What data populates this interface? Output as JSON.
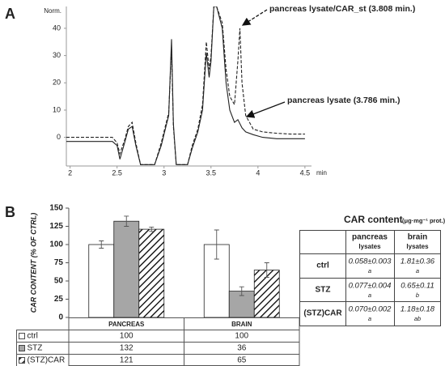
{
  "chart_data": [
    {
      "type": "line",
      "panel": "A",
      "ylabel": "Norm.",
      "xlabel": "min",
      "annotations": [
        "pancreas lysate/CAR_st (3.808 min.)",
        "pancreas lysate (3.786 min.)"
      ],
      "x": [
        1.96,
        2.3,
        2.45,
        2.5,
        2.53,
        2.58,
        2.62,
        2.66,
        2.7,
        2.75,
        2.82,
        2.9,
        2.97,
        3.02,
        3.05,
        3.08,
        3.1,
        3.13,
        3.2,
        3.25,
        3.3,
        3.36,
        3.41,
        3.45,
        3.48,
        3.5,
        3.53,
        3.56,
        3.62,
        3.66,
        3.7,
        3.75,
        3.786,
        3.808,
        3.83,
        3.87,
        3.95,
        4.05,
        4.2,
        4.35,
        4.5
      ],
      "series": [
        {
          "color": "#222222",
          "dash": false,
          "values": [
            -1.5,
            -1.5,
            -1.5,
            -3,
            -8,
            -2,
            3,
            4,
            -3,
            -10,
            -10,
            -10,
            -3,
            4,
            8,
            36,
            5,
            -10,
            -10,
            -10,
            -4,
            2,
            10,
            31,
            22,
            28,
            48,
            48,
            40,
            20,
            10,
            5.5,
            6.5,
            5,
            3.5,
            2,
            1,
            0,
            -0.5,
            -0.5,
            -0.5
          ]
        },
        {
          "color": "#222222",
          "dash": true,
          "values": [
            0,
            0,
            0,
            -2,
            -6,
            -1,
            4,
            5.5,
            -2,
            -10,
            -10,
            -10,
            -2,
            5,
            9,
            33,
            4,
            -10,
            -10,
            -10,
            -3,
            3,
            12,
            35,
            25,
            30,
            48,
            48,
            42,
            25,
            15,
            12,
            28,
            40,
            20,
            8,
            3,
            2,
            1.5,
            1.2,
            1.2
          ]
        }
      ],
      "xlim": [
        1.96,
        4.57
      ],
      "xticks": [
        2,
        2.5,
        3,
        3.5,
        4,
        4.5
      ],
      "ylim": [
        -10.5,
        48
      ],
      "yticks": [
        0,
        10,
        20,
        30,
        40
      ]
    },
    {
      "type": "bar",
      "panel": "B",
      "ylabel": "CAR CONTENT (% OF CTRL)",
      "categories": [
        "PANCREAS",
        "BRAIN"
      ],
      "series": [
        {
          "name": "ctrl",
          "color": "#ffffff",
          "hatch": false,
          "values": [
            100,
            100
          ],
          "errors": [
            5,
            20
          ]
        },
        {
          "name": "STZ",
          "color": "#a6a6a6",
          "hatch": false,
          "values": [
            132,
            36
          ],
          "errors": [
            7,
            6
          ]
        },
        {
          "name": "(STZ)CAR",
          "color": "#000000",
          "hatch": true,
          "values": [
            121,
            65
          ],
          "errors": [
            3,
            10
          ]
        }
      ],
      "ylim": [
        0,
        150
      ],
      "yticks": [
        0,
        25,
        50,
        75,
        100,
        125,
        150
      ]
    }
  ],
  "table": {
    "title": "CAR content",
    "unit": "(μg·mg⁻¹ prot.)",
    "columns": [
      {
        "name": "pancreas",
        "sub": "lysates"
      },
      {
        "name": "brain",
        "sub": "lysates"
      }
    ],
    "rows": [
      {
        "label": "ctrl",
        "cells": [
          {
            "value": "0.058±0.003",
            "letter": "a"
          },
          {
            "value": "1.81±0.36",
            "letter": "a"
          }
        ]
      },
      {
        "label": "STZ",
        "cells": [
          {
            "value": "0.077±0.004",
            "letter": "a"
          },
          {
            "value": "0.65±0.11",
            "letter": "b"
          }
        ]
      },
      {
        "label": "(STZ)CAR",
        "cells": [
          {
            "value": "0.070±0.002",
            "letter": "a"
          },
          {
            "value": "1.18±0.18",
            "letter": "ab"
          }
        ]
      }
    ]
  }
}
